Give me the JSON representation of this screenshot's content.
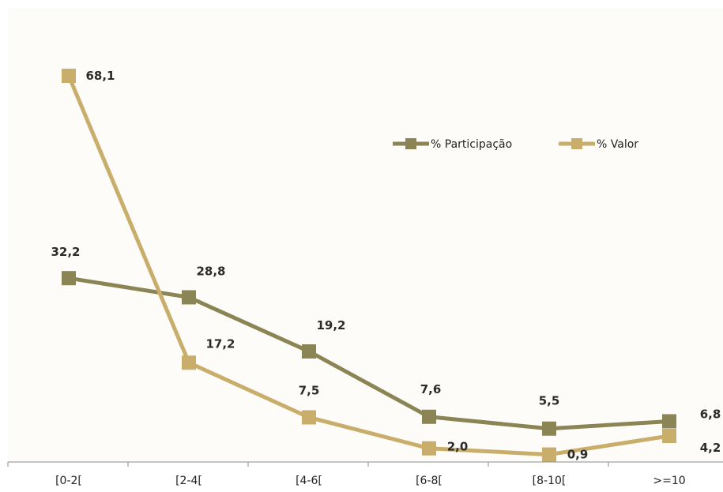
{
  "chart_data": {
    "type": "line",
    "categories": [
      "[0-2[",
      "[2-4[",
      "[4-6[",
      "[6-8[",
      "[8-10[",
      ">=10"
    ],
    "series": [
      {
        "name": "% Participação",
        "values": [
          32.2,
          28.8,
          19.2,
          7.6,
          5.5,
          6.8
        ],
        "labels": [
          "32,2",
          "28,8",
          "19,2",
          "7,6",
          "5,5",
          "6,8"
        ],
        "color": "#8b8455"
      },
      {
        "name": "% Valor",
        "values": [
          68.1,
          17.2,
          7.5,
          2.0,
          0.9,
          4.2
        ],
        "labels": [
          "68,1",
          "17,2",
          "7,5",
          "2,0",
          "0,9",
          "4,2"
        ],
        "color": "#c9ad6a"
      }
    ],
    "ylim": [
      0,
      73
    ],
    "grid": false,
    "legend_position": "top-right",
    "axis_color": "#8c8c8c"
  }
}
